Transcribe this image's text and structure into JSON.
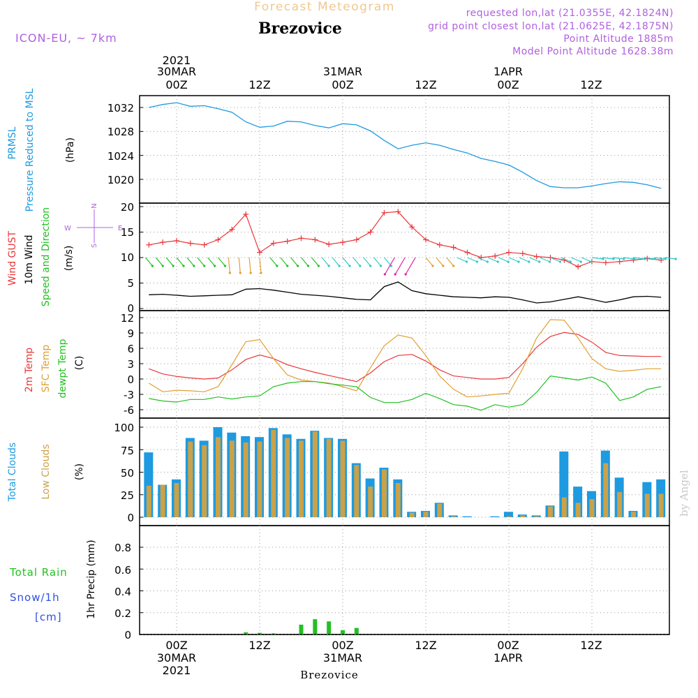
{
  "header": {
    "subtitle": "Forecast Meteogram",
    "station": "Brezovice",
    "model": "ICON-EU, ~ 7km",
    "requested": "requested lon,lat (21.0355E, 42.1824N)",
    "gridpoint": "grid point closest lon,lat (21.0625E, 42.1875N)",
    "point_alt": "Point Altitude 1885m",
    "model_alt": "Model Point Altitude 1628.38m",
    "footer_station": "Brezovice",
    "credit": "by Angel"
  },
  "time_axis": {
    "top": {
      "year": "2021",
      "dates": [
        "30MAR",
        "31MAR",
        "1APR"
      ],
      "ticks": [
        "00Z",
        "12Z",
        "00Z",
        "12Z",
        "00Z",
        "12Z"
      ]
    },
    "bottom": {
      "ticks": [
        "00Z",
        "12Z",
        "00Z",
        "12Z",
        "00Z",
        "12Z"
      ],
      "dates": [
        "30MAR",
        "31MAR",
        "1APR"
      ],
      "year": "2021"
    }
  },
  "panels": {
    "pressure": {
      "label1": "PRMSL",
      "label2": "Pressure Reduced to MSL",
      "unit": "(hPa)",
      "ticks": [
        "1032",
        "1028",
        "1024",
        "1020"
      ]
    },
    "wind": {
      "label1": "Wind GUST",
      "label2": "10m Wind",
      "label3": "Speed and Direction",
      "unit": "(m/s)",
      "compass": {
        "n": "N",
        "s": "S",
        "w": "W",
        "e": "E"
      },
      "ticks": [
        "20",
        "15",
        "10",
        "5",
        "0"
      ]
    },
    "temp": {
      "label1": "2m Temp",
      "label2": "SFC Temp",
      "label3": "dewpt Temp",
      "unit": "(C)",
      "ticks": [
        "12",
        "9",
        "6",
        "3",
        "0",
        "-3",
        "-6"
      ]
    },
    "clouds": {
      "label1": "Total Clouds",
      "label2": "Low Clouds",
      "unit": "(%)",
      "ticks": [
        "100",
        "75",
        "50",
        "25",
        "0"
      ]
    },
    "precip": {
      "label1": "Total Rain",
      "label2": "Snow/1h",
      "label3": "[cm]",
      "unit": "1hr Precip (mm)",
      "ticks": [
        "0.8",
        "0.6",
        "0.4",
        "0.2",
        "0"
      ]
    }
  },
  "colors": {
    "pressure": "#1e9ae0",
    "gust": "#e8383a",
    "wind_speed": "#000000",
    "t2m": "#e8383a",
    "tsfc": "#e0a030",
    "dewpt": "#22c022",
    "total_clouds": "#1e9ae0",
    "low_clouds": "#c9a24a",
    "rain": "#22c022",
    "subtitle": "#f0c890",
    "magenta_text": "#b060e0"
  },
  "chart_data": [
    {
      "type": "line",
      "title": "PRMSL",
      "ylabel": "Pressure Reduced to MSL (hPa)",
      "x_hours": [
        -4,
        -2,
        0,
        2,
        4,
        6,
        8,
        10,
        12,
        14,
        16,
        18,
        20,
        22,
        24,
        26,
        28,
        30,
        32,
        34,
        36,
        38,
        40,
        42,
        44,
        46,
        48,
        50,
        52,
        54,
        56,
        58,
        60,
        62,
        64,
        66,
        68,
        70
      ],
      "series": [
        {
          "name": "PRMSL",
          "values": [
            1032.0,
            1032.5,
            1032.8,
            1032.2,
            1032.3,
            1031.8,
            1031.2,
            1029.6,
            1028.7,
            1028.9,
            1029.7,
            1029.6,
            1029.0,
            1028.6,
            1029.3,
            1029.1,
            1028.1,
            1026.5,
            1025.1,
            1025.7,
            1026.1,
            1025.7,
            1025.0,
            1024.4,
            1023.5,
            1023.0,
            1022.4,
            1021.2,
            1019.8,
            1018.8,
            1018.6,
            1018.6,
            1018.9,
            1019.3,
            1019.6,
            1019.5,
            1019.1,
            1018.5
          ]
        }
      ],
      "ylim": [
        1018,
        1033
      ]
    },
    {
      "type": "line",
      "title": "Wind",
      "x_hours": [
        -4,
        -2,
        0,
        2,
        4,
        6,
        8,
        10,
        12,
        14,
        16,
        18,
        20,
        22,
        24,
        26,
        28,
        30,
        32,
        34,
        36,
        38,
        40,
        42,
        44,
        46,
        48,
        50,
        52,
        54,
        56,
        58,
        60,
        62,
        64,
        66,
        68,
        70
      ],
      "series": [
        {
          "name": "Wind GUST",
          "values": [
            12.5,
            13.0,
            13.3,
            12.8,
            12.5,
            13.5,
            15.5,
            18.5,
            11.0,
            12.8,
            13.2,
            13.8,
            13.5,
            12.6,
            13.0,
            13.5,
            15.0,
            18.8,
            19.0,
            16.0,
            13.5,
            12.5,
            12.0,
            11.0,
            10.0,
            10.3,
            11.0,
            10.8,
            10.2,
            10.0,
            9.5,
            8.2,
            9.2,
            9.0,
            9.2,
            9.5,
            9.8,
            9.5
          ]
        },
        {
          "name": "10m Wind speed",
          "values": [
            2.7,
            2.8,
            2.6,
            2.4,
            2.5,
            2.6,
            2.7,
            3.8,
            3.9,
            3.6,
            3.2,
            2.8,
            2.6,
            2.4,
            2.1,
            1.8,
            1.7,
            4.3,
            5.2,
            3.5,
            2.9,
            2.6,
            2.3,
            2.2,
            2.1,
            2.3,
            2.2,
            1.7,
            1.1,
            1.3,
            1.8,
            2.3,
            1.8,
            1.2,
            1.7,
            2.3,
            2.4,
            2.2
          ]
        }
      ],
      "ylim": [
        0,
        21
      ]
    },
    {
      "type": "line",
      "title": "Temperature",
      "ylabel": "(C)",
      "x_hours": [
        -4,
        -2,
        0,
        2,
        4,
        6,
        8,
        10,
        12,
        14,
        16,
        18,
        20,
        22,
        24,
        26,
        28,
        30,
        32,
        34,
        36,
        38,
        40,
        42,
        44,
        46,
        48,
        50,
        52,
        54,
        56,
        58,
        60,
        62,
        64,
        66,
        68,
        70
      ],
      "series": [
        {
          "name": "2m Temp",
          "values": [
            2.0,
            1.0,
            0.5,
            0.2,
            0.0,
            0.2,
            1.8,
            3.8,
            4.7,
            4.0,
            2.8,
            2.0,
            1.3,
            0.7,
            0.1,
            -0.5,
            1.2,
            3.4,
            4.6,
            4.8,
            3.5,
            1.8,
            0.6,
            0.3,
            0.0,
            0.0,
            0.3,
            3.0,
            6.2,
            8.3,
            9.1,
            8.7,
            7.2,
            5.2,
            4.6,
            4.5,
            4.4,
            4.4
          ]
        },
        {
          "name": "SFC Temp",
          "values": [
            -0.8,
            -2.5,
            -2.2,
            -2.3,
            -2.5,
            -1.5,
            2.8,
            7.3,
            7.7,
            4.0,
            0.8,
            -0.2,
            -0.5,
            -0.8,
            -1.5,
            -2.3,
            2.2,
            6.5,
            8.6,
            8.0,
            4.6,
            0.6,
            -2.0,
            -3.5,
            -3.3,
            -3.0,
            -2.8,
            2.0,
            8.0,
            11.6,
            11.5,
            8.0,
            4.0,
            2.0,
            1.5,
            1.7,
            2.0,
            2.0
          ]
        },
        {
          "name": "dewpt Temp",
          "values": [
            -3.8,
            -4.3,
            -4.5,
            -4.0,
            -4.0,
            -3.5,
            -3.9,
            -3.5,
            -3.3,
            -1.5,
            -0.8,
            -0.5,
            -0.5,
            -0.9,
            -1.2,
            -1.5,
            -3.6,
            -4.6,
            -4.6,
            -4.0,
            -2.8,
            -3.8,
            -5.0,
            -5.3,
            -6.1,
            -5.0,
            -5.5,
            -5.0,
            -2.6,
            0.6,
            0.2,
            -0.2,
            0.4,
            -0.8,
            -4.2,
            -3.5,
            -2.0,
            -1.5
          ]
        }
      ],
      "ylim": [
        -7.5,
        13
      ]
    },
    {
      "type": "bar",
      "title": "Clouds",
      "ylabel": "(%)",
      "x_hours": [
        -4,
        -2,
        0,
        2,
        4,
        6,
        8,
        10,
        12,
        14,
        16,
        18,
        20,
        22,
        24,
        26,
        28,
        30,
        32,
        34,
        36,
        38,
        40,
        42,
        44,
        46,
        48,
        50,
        52,
        54,
        56,
        58,
        60,
        62,
        64,
        66,
        68,
        70
      ],
      "series": [
        {
          "name": "Total Clouds",
          "values": [
            72,
            36,
            42,
            88,
            85,
            100,
            94,
            90,
            89,
            99,
            92,
            87,
            96,
            88,
            87,
            60,
            43,
            55,
            42,
            6,
            7,
            16,
            2,
            1,
            0,
            1,
            6,
            3,
            2,
            13,
            73,
            34,
            29,
            74,
            44,
            7,
            39,
            42
          ]
        },
        {
          "name": "Low Clouds",
          "values": [
            35,
            36,
            38,
            84,
            80,
            89,
            85,
            83,
            84,
            97,
            88,
            85,
            95,
            87,
            85,
            58,
            34,
            53,
            38,
            5,
            6,
            15,
            1,
            0,
            0,
            0,
            1,
            2,
            1,
            12,
            22,
            16,
            20,
            60,
            28,
            6,
            26,
            26
          ]
        }
      ],
      "ylim": [
        0,
        105
      ]
    },
    {
      "type": "bar",
      "title": "Precipitation",
      "ylabel": "1hr Precip (mm)",
      "x_hours": [
        8,
        10,
        12,
        14,
        16,
        18,
        20,
        22,
        24,
        26
      ],
      "series": [
        {
          "name": "Total Rain",
          "values": [
            0.0,
            0.02,
            0.015,
            0.01,
            0.0,
            0.09,
            0.14,
            0.12,
            0.04,
            0.06
          ]
        }
      ],
      "ylim": [
        0,
        1.0
      ]
    }
  ]
}
